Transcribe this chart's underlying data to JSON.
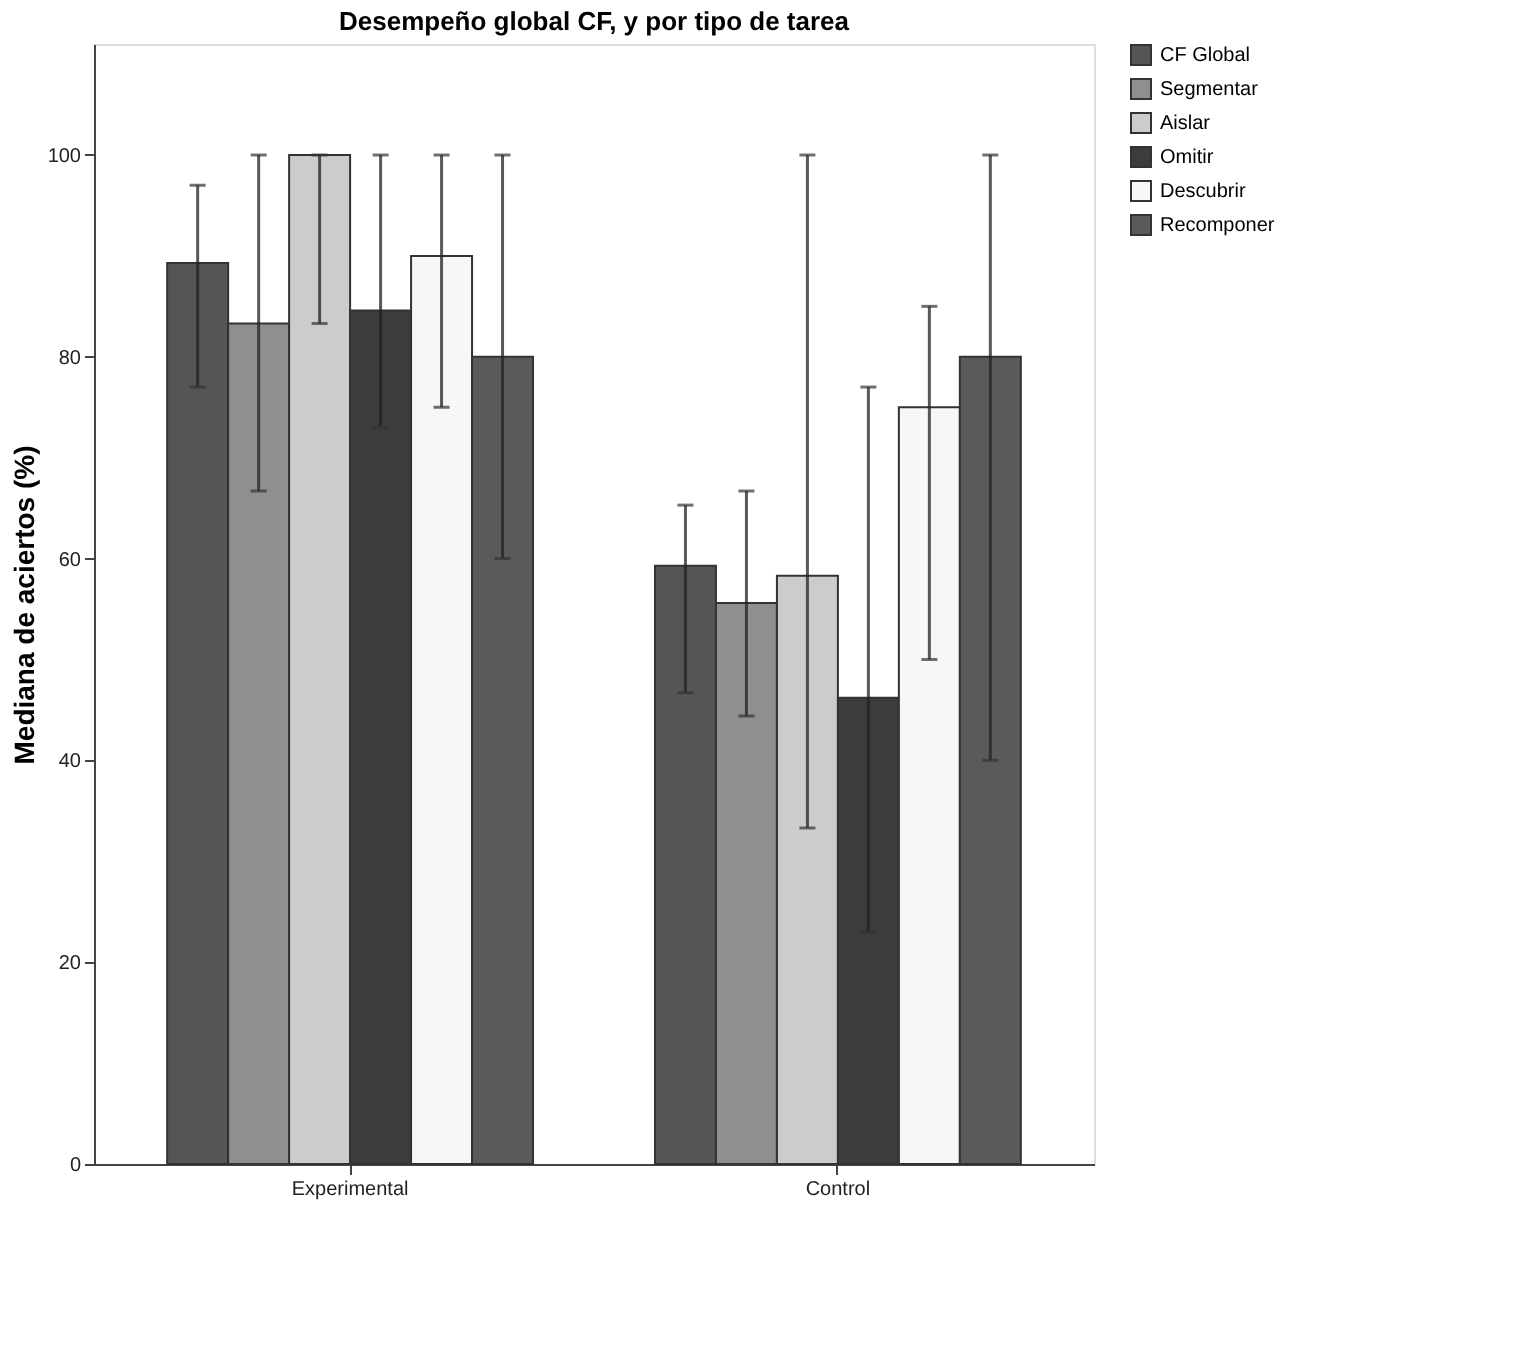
{
  "chart_data": {
    "type": "bar",
    "title": "Desempeño global CF, y por tipo de tarea",
    "ylabel": "Mediana de aciertos (%)",
    "categories": [
      "Experimental",
      "Control"
    ],
    "ylim": [
      0,
      111
    ],
    "yticks": [
      0,
      20,
      40,
      60,
      80,
      100
    ],
    "grid": false,
    "legend": "top right",
    "series": [
      {
        "name": "CF Global",
        "color": "#555555",
        "values": [
          89.3,
          59.3
        ],
        "errors": [
          [
            77,
            97
          ],
          [
            46.7,
            65.3
          ]
        ]
      },
      {
        "name": "Segmentar",
        "color": "#8f8f8f",
        "values": [
          83.3,
          55.6
        ],
        "errors": [
          [
            66.7,
            100
          ],
          [
            44.4,
            66.7
          ]
        ]
      },
      {
        "name": "Aislar",
        "color": "#cccccc",
        "values": [
          100,
          58.3
        ],
        "errors": [
          [
            83.3,
            100
          ],
          [
            33.3,
            100
          ]
        ]
      },
      {
        "name": "Omitir",
        "color": "#3c3c3c",
        "values": [
          84.6,
          46.2
        ],
        "errors": [
          [
            73,
            100
          ],
          [
            23,
            77
          ]
        ]
      },
      {
        "name": "Descubrir",
        "color": "#f7f7f7",
        "values": [
          90,
          75
        ],
        "errors": [
          [
            75,
            100
          ],
          [
            50,
            85
          ]
        ]
      },
      {
        "name": "Recomponer",
        "color": "#5a5a5a",
        "values": [
          80,
          80
        ],
        "errors": [
          [
            60,
            100
          ],
          [
            40,
            100
          ]
        ]
      }
    ]
  }
}
